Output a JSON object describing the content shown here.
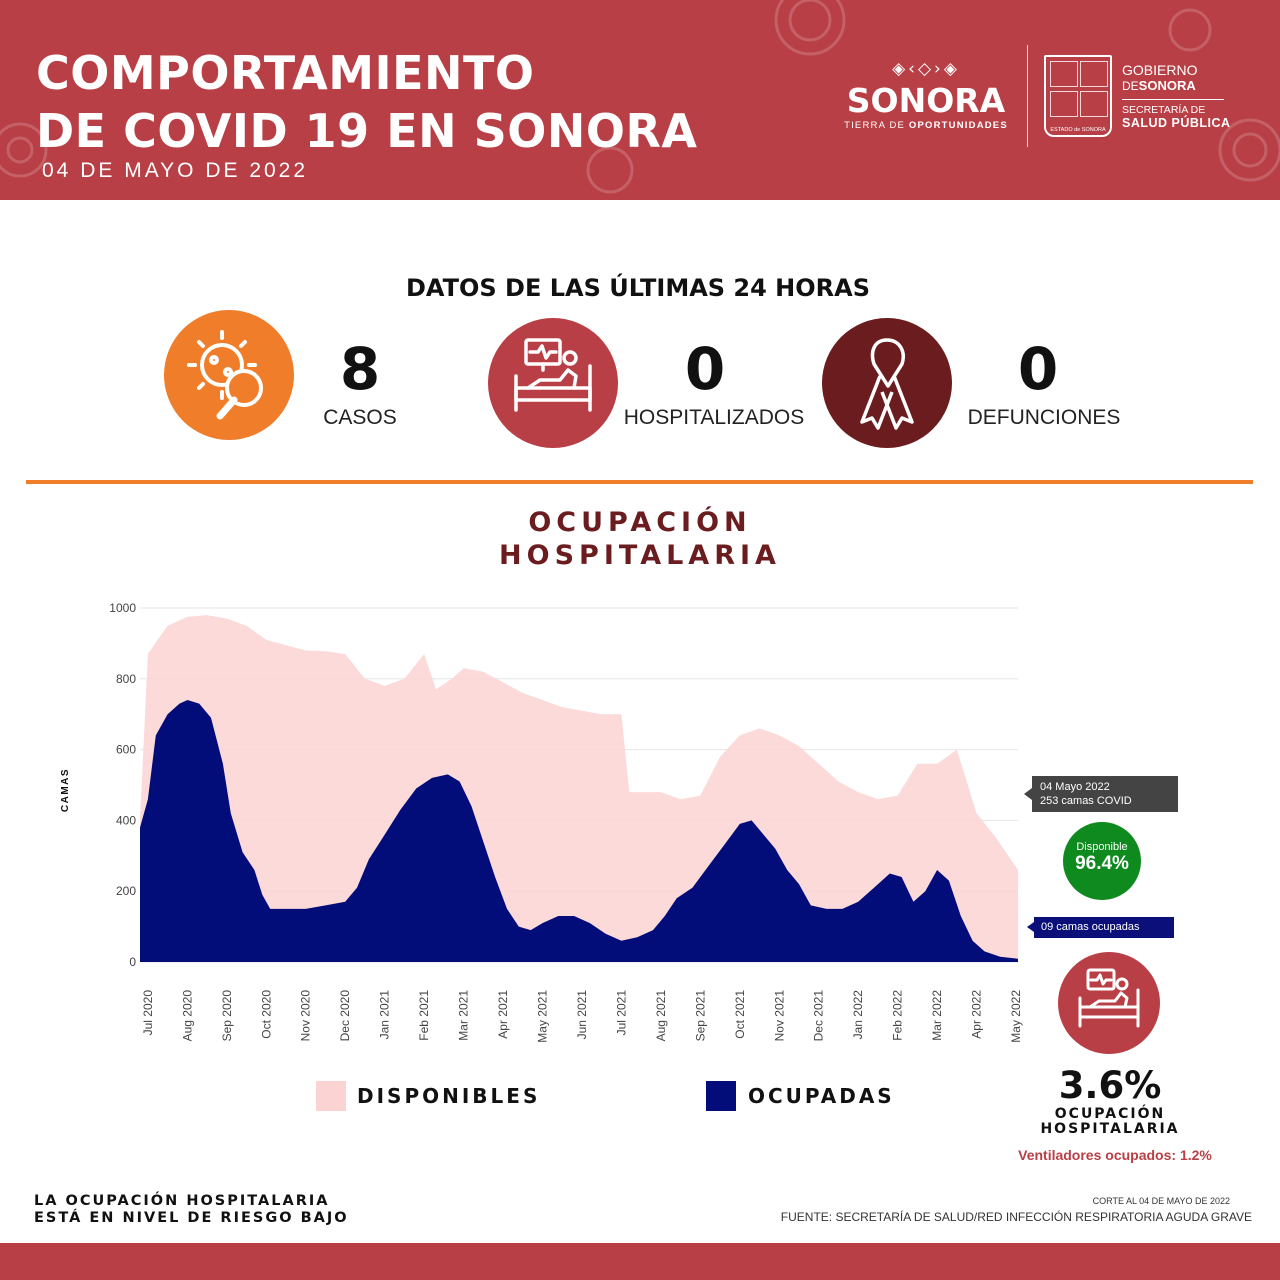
{
  "header": {
    "title_line1": "COMPORTAMIENTO",
    "title_line2": "DE COVID 19 EN SONORA",
    "date": "04 DE MAYO DE 2022",
    "logo_word": "SONORA",
    "logo_tagline_a": "TIERRA DE ",
    "logo_tagline_b": "OPORTUNIDADES",
    "gob_line1": "GOBIERNO",
    "gob_line2a": "DE",
    "gob_line2b": "SONORA",
    "gob_line3": "SECRETARÍA DE",
    "gob_line4": "SALUD PÚBLICA",
    "shield_caption": "ESTADO de SONORA"
  },
  "stats": {
    "title": "DATOS DE LAS ÚLTIMAS 24 HORAS",
    "cases_value": "8",
    "cases_label": "CASOS",
    "hosp_value": "0",
    "hosp_label": "HOSPITALIZADOS",
    "deaths_value": "0",
    "deaths_label": "DEFUNCIONES",
    "colors": {
      "cases": "#ef7d2a",
      "hosp": "#b83f45",
      "deaths": "#6b1c1e"
    }
  },
  "chart_section": {
    "title_line1": "OCUPACIÓN",
    "title_line2": "HOSPITALARIA"
  },
  "chart_data": {
    "type": "area",
    "ylabel": "CAMAS",
    "ylim": [
      0,
      1000
    ],
    "yticks": [
      0,
      200,
      400,
      600,
      800,
      1000
    ],
    "x_tick_labels": [
      "Jul 2020",
      "Aug 2020",
      "Sep 2020",
      "Oct 2020",
      "Nov 2020",
      "Dec 2020",
      "Jan 2021",
      "Feb 2021",
      "Mar 2021",
      "Apr 2021",
      "May 2021",
      "Jun 2021",
      "Jul 2021",
      "Aug 2021",
      "Sep 2021",
      "Oct 2021",
      "Nov 2021",
      "Dec 2021",
      "Jan 2022",
      "Feb 2022",
      "Mar 2022",
      "Apr 2022",
      "May 2022"
    ],
    "x_start_month": 5.8,
    "x_end_month": 28.05,
    "series": [
      {
        "name": "DISPONIBLES",
        "color": "#fcd3d3",
        "points": [
          [
            5.8,
            400
          ],
          [
            6.0,
            870
          ],
          [
            6.5,
            950
          ],
          [
            7.0,
            975
          ],
          [
            7.5,
            980
          ],
          [
            8.0,
            970
          ],
          [
            8.5,
            950
          ],
          [
            9.0,
            910
          ],
          [
            9.5,
            895
          ],
          [
            10.0,
            880
          ],
          [
            10.5,
            878
          ],
          [
            11.0,
            870
          ],
          [
            11.5,
            800
          ],
          [
            12.0,
            780
          ],
          [
            12.5,
            800
          ],
          [
            13.0,
            870
          ],
          [
            13.3,
            770
          ],
          [
            13.7,
            800
          ],
          [
            14.0,
            830
          ],
          [
            14.5,
            820
          ],
          [
            15.0,
            790
          ],
          [
            15.5,
            760
          ],
          [
            16.0,
            740
          ],
          [
            16.5,
            720
          ],
          [
            17.0,
            710
          ],
          [
            17.5,
            700
          ],
          [
            18.0,
            700
          ],
          [
            18.2,
            480
          ],
          [
            19.0,
            480
          ],
          [
            19.5,
            460
          ],
          [
            20.0,
            470
          ],
          [
            20.5,
            580
          ],
          [
            21.0,
            640
          ],
          [
            21.5,
            660
          ],
          [
            22.0,
            640
          ],
          [
            22.5,
            610
          ],
          [
            23.0,
            560
          ],
          [
            23.5,
            510
          ],
          [
            24.0,
            480
          ],
          [
            24.5,
            460
          ],
          [
            25.0,
            470
          ],
          [
            25.5,
            560
          ],
          [
            26.0,
            560
          ],
          [
            26.5,
            600
          ],
          [
            27.0,
            420
          ],
          [
            27.5,
            350
          ],
          [
            28.05,
            260
          ]
        ]
      },
      {
        "name": "OCUPADAS",
        "color": "#020d7a",
        "points": [
          [
            5.8,
            380
          ],
          [
            6.0,
            460
          ],
          [
            6.2,
            640
          ],
          [
            6.5,
            700
          ],
          [
            6.8,
            730
          ],
          [
            7.0,
            740
          ],
          [
            7.3,
            730
          ],
          [
            7.6,
            690
          ],
          [
            7.9,
            560
          ],
          [
            8.1,
            420
          ],
          [
            8.4,
            310
          ],
          [
            8.7,
            260
          ],
          [
            8.9,
            190
          ],
          [
            9.1,
            150
          ],
          [
            9.5,
            150
          ],
          [
            10.0,
            150
          ],
          [
            10.5,
            160
          ],
          [
            11.0,
            170
          ],
          [
            11.3,
            210
          ],
          [
            11.6,
            290
          ],
          [
            12.0,
            360
          ],
          [
            12.4,
            430
          ],
          [
            12.8,
            490
          ],
          [
            13.2,
            520
          ],
          [
            13.6,
            530
          ],
          [
            13.9,
            510
          ],
          [
            14.2,
            440
          ],
          [
            14.5,
            340
          ],
          [
            14.8,
            240
          ],
          [
            15.1,
            150
          ],
          [
            15.4,
            100
          ],
          [
            15.7,
            90
          ],
          [
            16.0,
            110
          ],
          [
            16.4,
            130
          ],
          [
            16.8,
            130
          ],
          [
            17.2,
            110
          ],
          [
            17.6,
            80
          ],
          [
            18.0,
            60
          ],
          [
            18.4,
            70
          ],
          [
            18.8,
            90
          ],
          [
            19.1,
            130
          ],
          [
            19.4,
            180
          ],
          [
            19.8,
            210
          ],
          [
            20.2,
            270
          ],
          [
            20.6,
            330
          ],
          [
            21.0,
            390
          ],
          [
            21.3,
            400
          ],
          [
            21.6,
            360
          ],
          [
            21.9,
            320
          ],
          [
            22.2,
            260
          ],
          [
            22.5,
            220
          ],
          [
            22.8,
            160
          ],
          [
            23.2,
            150
          ],
          [
            23.6,
            150
          ],
          [
            24.0,
            170
          ],
          [
            24.4,
            210
          ],
          [
            24.8,
            250
          ],
          [
            25.1,
            240
          ],
          [
            25.4,
            170
          ],
          [
            25.7,
            200
          ],
          [
            26.0,
            260
          ],
          [
            26.3,
            230
          ],
          [
            26.6,
            130
          ],
          [
            26.9,
            60
          ],
          [
            27.2,
            30
          ],
          [
            27.6,
            15
          ],
          [
            28.05,
            9
          ]
        ]
      }
    ],
    "legend": [
      {
        "label": "DISPONIBLES",
        "color": "#fcd3d3"
      },
      {
        "label": "OCUPADAS",
        "color": "#020d7a"
      }
    ],
    "legend_position": "bottom",
    "grid": true
  },
  "annotations": {
    "tip_date": "04 Mayo 2022",
    "tip_beds": "253 camas COVID",
    "disp_label": "Disponible",
    "disp_value": "96.4%",
    "occupied_label": "09  camas ocupadas",
    "occ_pct": "3.6%",
    "occ_label_line1": "OCUPACIÓN",
    "occ_label_line2": "HOSPITALARIA",
    "ventilators": "Ventiladores ocupados: 1.2%"
  },
  "footer": {
    "risk_line1": "LA OCUPACIÓN HOSPITALARIA",
    "risk_line2": "ESTÁ EN NIVEL DE RIESGO BAJO",
    "corte": "CORTE AL 04 DE MAYO DE 2022",
    "fuente": "FUENTE: SECRETARÍA DE SALUD/RED INFECCIÓN RESPIRATORIA AGUDA GRAVE"
  }
}
